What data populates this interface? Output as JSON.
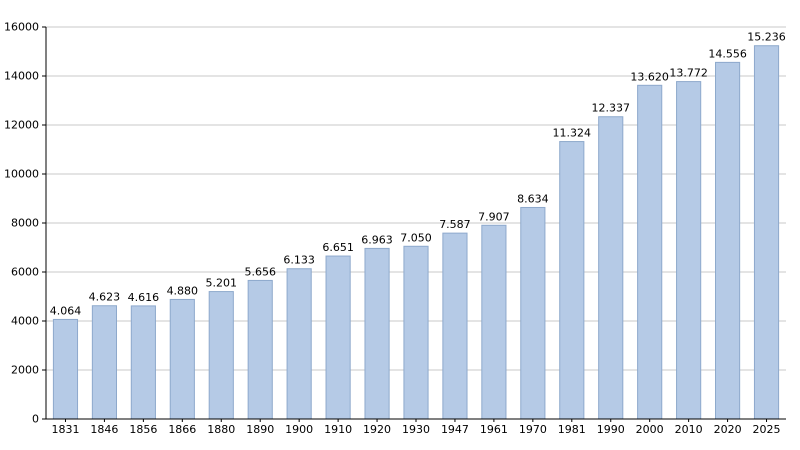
{
  "chart_data": {
    "type": "bar",
    "title": "",
    "xlabel": "",
    "ylabel": "",
    "categories": [
      "1831",
      "1846",
      "1856",
      "1866",
      "1880",
      "1890",
      "1900",
      "1910",
      "1920",
      "1930",
      "1947",
      "1961",
      "1970",
      "1981",
      "1990",
      "2000",
      "2010",
      "2020",
      "2025"
    ],
    "values": [
      4064,
      4623,
      4616,
      4880,
      5201,
      5656,
      6133,
      6651,
      6963,
      7050,
      7587,
      7907,
      8634,
      11324,
      12337,
      13620,
      13772,
      14556,
      15236
    ],
    "value_labels": [
      "4.064",
      "4.623",
      "4.616",
      "4.880",
      "5.201",
      "5.656",
      "6.133",
      "6.651",
      "6.963",
      "7.050",
      "7.587",
      "7.907",
      "8.634",
      "11.324",
      "12.337",
      "13.620",
      "13.772",
      "14.556",
      "15.236"
    ],
    "ylim": [
      0,
      16000
    ],
    "yticks": [
      0,
      2000,
      4000,
      6000,
      8000,
      10000,
      12000,
      14000,
      16000
    ],
    "grid": true,
    "legend": "none",
    "colors": {
      "bar_fill": "#b5cae6",
      "bar_border": "#8ea9cc",
      "gridline": "#c9c9c9",
      "axis": "#000000",
      "text": "#000000",
      "background": "#ffffff"
    }
  }
}
